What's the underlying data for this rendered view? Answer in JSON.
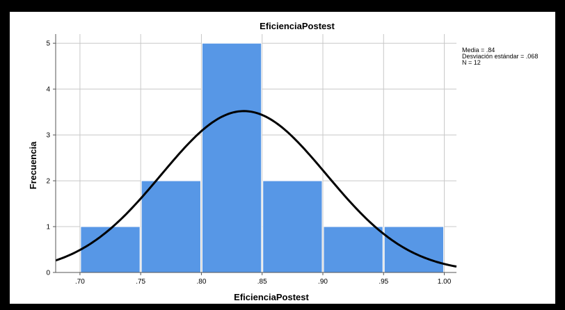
{
  "chart_data": {
    "type": "bar",
    "title": "EficienciaPostest",
    "xlabel": "EficienciaPostest",
    "ylabel": "Frecuencia",
    "x_ticks": [
      ".70",
      ".75",
      ".80",
      ".85",
      ".90",
      ".95",
      "1.00"
    ],
    "y_ticks": [
      "0",
      "1",
      "2",
      "3",
      "4",
      "5"
    ],
    "xlim": [
      0.68,
      1.01
    ],
    "ylim": [
      0,
      5.2
    ],
    "bin_width": 0.05,
    "bins": [
      {
        "start": 0.7,
        "end": 0.75,
        "count": 1
      },
      {
        "start": 0.75,
        "end": 0.8,
        "count": 2
      },
      {
        "start": 0.8,
        "end": 0.85,
        "count": 5
      },
      {
        "start": 0.85,
        "end": 0.9,
        "count": 2
      },
      {
        "start": 0.9,
        "end": 0.95,
        "count": 1
      },
      {
        "start": 0.95,
        "end": 1.0,
        "count": 1
      }
    ],
    "normal_curve": {
      "mean": 0.835,
      "sd": 0.068,
      "n": 12
    },
    "grid": true,
    "legend_position": "top-right",
    "bar_color": "#5797e6",
    "stats": [
      "Media = .84",
      "Desviación estándar = .068",
      "N = 12"
    ]
  }
}
